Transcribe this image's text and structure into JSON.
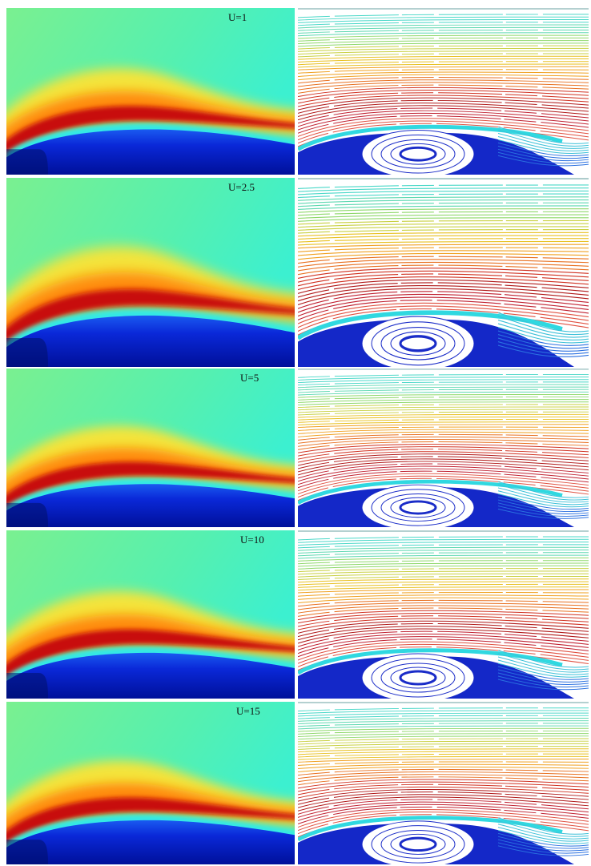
{
  "panels": [
    {
      "label": "U=1"
    },
    {
      "label": "U=2.5"
    },
    {
      "label": "U=5"
    },
    {
      "label": "U=10"
    },
    {
      "label": "U=15"
    }
  ]
}
